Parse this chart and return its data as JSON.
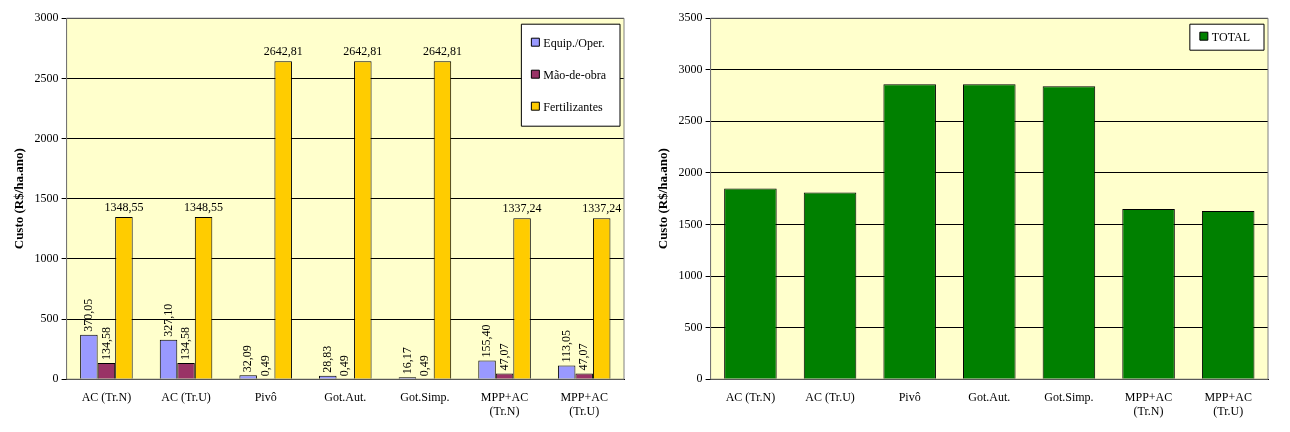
{
  "chart_data": [
    {
      "type": "bar",
      "ylabel": "Custo (R$/ha.ano)",
      "categories": [
        "AC (Tr.N)",
        "AC (Tr.U)",
        "Pivô",
        "Got.Aut.",
        "Got.Simp.",
        "MPP+AC\n(Tr.N)",
        "MPP+AC\n(Tr.U)"
      ],
      "series": [
        {
          "name": "Equip./Oper.",
          "color": "#9999ff",
          "values": [
            370.05,
            327.1,
            32.09,
            28.83,
            16.17,
            155.4,
            113.05
          ],
          "value_labels": [
            "370,05",
            "327,10",
            "32,09",
            "28,83",
            "16,17",
            "155,40",
            "113,05"
          ]
        },
        {
          "name": "Mão-de-obra",
          "color": "#993366",
          "values": [
            134.58,
            134.58,
            0.49,
            0.49,
            0.49,
            47.07,
            47.07
          ],
          "value_labels": [
            "134,58",
            "134,58",
            "0,49",
            "0,49",
            "0,49",
            "47,07",
            "47,07"
          ]
        },
        {
          "name": "Fertilizantes",
          "color": "#ffcc00",
          "values": [
            1348.55,
            1348.55,
            2642.81,
            2642.81,
            2642.81,
            1337.24,
            1337.24
          ],
          "value_labels": [
            "1348,55",
            "1348,55",
            "2642,81",
            "2642,81",
            "2642,81",
            "1337,24",
            "1337,24"
          ]
        }
      ],
      "ylim": [
        0,
        3000
      ],
      "yticks": [
        0,
        500,
        1000,
        1500,
        2000,
        2500,
        3000
      ],
      "grid": "y",
      "legend": "top right"
    },
    {
      "type": "bar",
      "ylabel": "Custo (R$/ha.ano)",
      "categories": [
        "AC (Tr.N)",
        "AC (Tr.U)",
        "Pivô",
        "Got.Aut.",
        "Got.Simp.",
        "MPP+AC\n(Tr.N)",
        "MPP+AC\n(Tr.U)"
      ],
      "series": [
        {
          "name": "TOTAL",
          "color": "#008000",
          "values": [
            1850,
            1810,
            2860,
            2860,
            2840,
            1650,
            1630
          ]
        }
      ],
      "ylim": [
        0,
        3500
      ],
      "yticks": [
        0,
        500,
        1000,
        1500,
        2000,
        2500,
        3000,
        3500
      ],
      "grid": "y",
      "legend": "top right"
    }
  ]
}
